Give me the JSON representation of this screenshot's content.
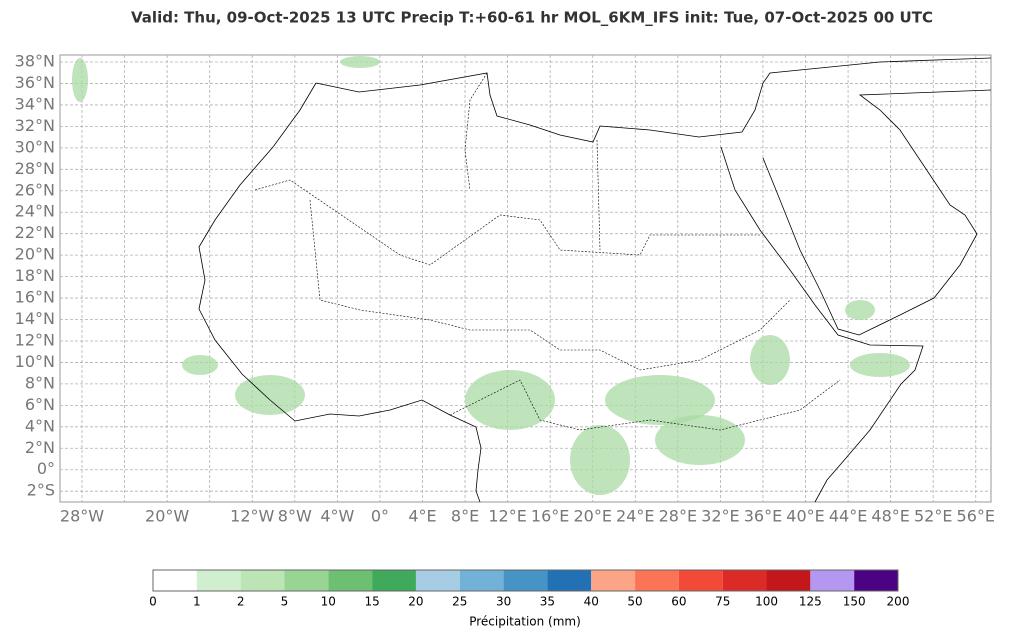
{
  "title": "Valid: Thu, 09-Oct-2025   13 UTC   Precip   T:+60-61 hr   MOL_6KM_IFS      init: Tue, 07-Oct-2025   00 UTC",
  "map": {
    "lat_ticks": [
      {
        "value": 38,
        "label": "38°N"
      },
      {
        "value": 36,
        "label": "36°N"
      },
      {
        "value": 34,
        "label": "34°N"
      },
      {
        "value": 32,
        "label": "32°N"
      },
      {
        "value": 30,
        "label": "30°N"
      },
      {
        "value": 28,
        "label": "28°N"
      },
      {
        "value": 26,
        "label": "26°N"
      },
      {
        "value": 24,
        "label": "24°N"
      },
      {
        "value": 22,
        "label": "22°N"
      },
      {
        "value": 20,
        "label": "20°N"
      },
      {
        "value": 18,
        "label": "18°N"
      },
      {
        "value": 16,
        "label": "16°N"
      },
      {
        "value": 14,
        "label": "14°N"
      },
      {
        "value": 12,
        "label": "12°N"
      },
      {
        "value": 10,
        "label": "10°N"
      },
      {
        "value": 8,
        "label": "8°N"
      },
      {
        "value": 6,
        "label": "6°N"
      },
      {
        "value": 4,
        "label": "4°N"
      },
      {
        "value": 2,
        "label": "2°N"
      },
      {
        "value": 0,
        "label": "0°"
      },
      {
        "value": -2,
        "label": "2°S"
      }
    ],
    "lon_ticks": [
      {
        "value": -28,
        "label": "28°W"
      },
      {
        "value": -20,
        "label": "20°W"
      },
      {
        "value": -12,
        "label": "12°W"
      },
      {
        "value": -8,
        "label": "8°W"
      },
      {
        "value": -4,
        "label": "4°W"
      },
      {
        "value": 0,
        "label": "0°"
      },
      {
        "value": 4,
        "label": "4°E"
      },
      {
        "value": 8,
        "label": "8°E"
      },
      {
        "value": 12,
        "label": "12°E"
      },
      {
        "value": 16,
        "label": "16°E"
      },
      {
        "value": 20,
        "label": "20°E"
      },
      {
        "value": 24,
        "label": "24°E"
      },
      {
        "value": 28,
        "label": "28°E"
      },
      {
        "value": 32,
        "label": "32°E"
      },
      {
        "value": 36,
        "label": "36°E"
      },
      {
        "value": 40,
        "label": "40°E"
      },
      {
        "value": 44,
        "label": "44°E"
      },
      {
        "value": 48,
        "label": "48°E"
      },
      {
        "value": 52,
        "label": "52°E"
      },
      {
        "value": 56,
        "label": "56°E"
      }
    ]
  },
  "colorbar": {
    "bounds": [
      0,
      1,
      2,
      5,
      10,
      15,
      20,
      25,
      30,
      35,
      40,
      50,
      60,
      75,
      100,
      125,
      150,
      200
    ],
    "colors": [
      "#ffffff",
      "#d0efcf",
      "#bce4b5",
      "#98d594",
      "#6dc072",
      "#3fa95c",
      "#a6cde4",
      "#72b1d8",
      "#4694c6",
      "#2271b5",
      "#fca486",
      "#fb7456",
      "#f24a36",
      "#dc2a26",
      "#c3171c",
      "#b497f0",
      "#4b0283"
    ],
    "label": "Précipitation (mm)"
  }
}
